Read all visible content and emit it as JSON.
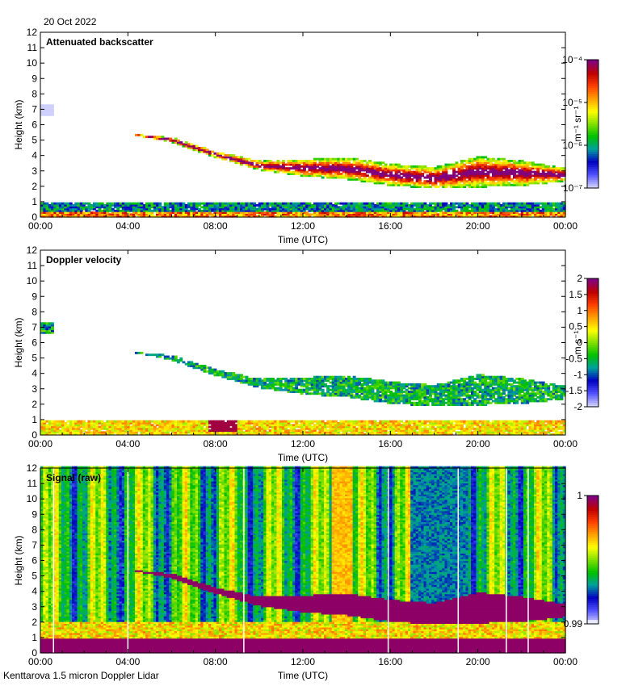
{
  "date": "20 Oct 2022",
  "footer": "Kenttarova 1.5 micron Doppler Lidar",
  "colors": {
    "background": "#ffffff",
    "axis": "#000000",
    "colormap": [
      "#ffffff",
      "#d0d0ff",
      "#5050ff",
      "#0000c0",
      "#00a0a0",
      "#00c000",
      "#80e000",
      "#ffff00",
      "#ffa000",
      "#ff4000",
      "#c00000",
      "#800080"
    ]
  },
  "chart_data": [
    {
      "type": "heatmap",
      "title": "Attenuated backscatter",
      "xlabel": "Time (UTC)",
      "ylabel": "Height (km)",
      "x_ticks": [
        "00:00",
        "04:00",
        "08:00",
        "12:00",
        "16:00",
        "20:00",
        "00:00"
      ],
      "y_ticks": [
        "0",
        "1",
        "2",
        "3",
        "4",
        "5",
        "6",
        "7",
        "8",
        "9",
        "10",
        "11",
        "12"
      ],
      "xlim": [
        0,
        24
      ],
      "ylim": [
        0,
        12
      ],
      "colorbar_label": "m⁻¹ sr⁻¹",
      "colorbar_ticks": [
        "10⁻⁷",
        "10⁻⁶",
        "10⁻⁵",
        "10⁻⁴"
      ],
      "colorbar_values": [
        -7,
        -6,
        -5,
        -4
      ],
      "features": {
        "cloud_base_km": [
          [
            4.5,
            5.2
          ],
          [
            6,
            4.8
          ],
          [
            8,
            3.8
          ],
          [
            10,
            3.0
          ],
          [
            12,
            2.6
          ],
          [
            14,
            2.4
          ],
          [
            16,
            2.0
          ],
          [
            18,
            1.8
          ],
          [
            20,
            1.9
          ],
          [
            22,
            2.0
          ],
          [
            24,
            2.3
          ]
        ],
        "cloud_top_km": [
          [
            4.5,
            5.3
          ],
          [
            6,
            5.1
          ],
          [
            8,
            4.2
          ],
          [
            10,
            3.6
          ],
          [
            12,
            3.7
          ],
          [
            14,
            3.8
          ],
          [
            16,
            3.4
          ],
          [
            18,
            3.2
          ],
          [
            20,
            3.9
          ],
          [
            22,
            3.6
          ],
          [
            24,
            3.1
          ]
        ],
        "boundary_layer_top_km": 0.9
      }
    },
    {
      "type": "heatmap",
      "title": "Doppler velocity",
      "xlabel": "Time (UTC)",
      "ylabel": "Height (km)",
      "x_ticks": [
        "00:00",
        "04:00",
        "08:00",
        "12:00",
        "16:00",
        "20:00",
        "00:00"
      ],
      "y_ticks": [
        "0",
        "1",
        "2",
        "3",
        "4",
        "5",
        "6",
        "7",
        "8",
        "9",
        "10",
        "11",
        "12"
      ],
      "xlim": [
        0,
        24
      ],
      "ylim": [
        0,
        12
      ],
      "colorbar_label": "m s⁻¹",
      "colorbar_ticks": [
        "-2",
        "-1.5",
        "-1",
        "-0.5",
        "0",
        "0.5",
        "1",
        "1.5",
        "2"
      ],
      "colorbar_values": [
        -2,
        -1.5,
        -1,
        -0.5,
        0,
        0.5,
        1,
        1.5,
        2
      ]
    },
    {
      "type": "heatmap",
      "title": "Signal (raw)",
      "xlabel": "Time (UTC)",
      "ylabel": "Height (km)",
      "x_ticks": [
        "00:00",
        "04:00",
        "08:00",
        "12:00",
        "16:00",
        "20:00",
        "00:00"
      ],
      "y_ticks": [
        "0",
        "1",
        "2",
        "3",
        "4",
        "5",
        "6",
        "7",
        "8",
        "9",
        "10",
        "11",
        "12"
      ],
      "xlim": [
        0,
        24
      ],
      "ylim": [
        0,
        12
      ],
      "colorbar_ticks": [
        "0.99",
        "1"
      ],
      "colorbar_values": [
        0.99,
        1.0
      ]
    }
  ]
}
